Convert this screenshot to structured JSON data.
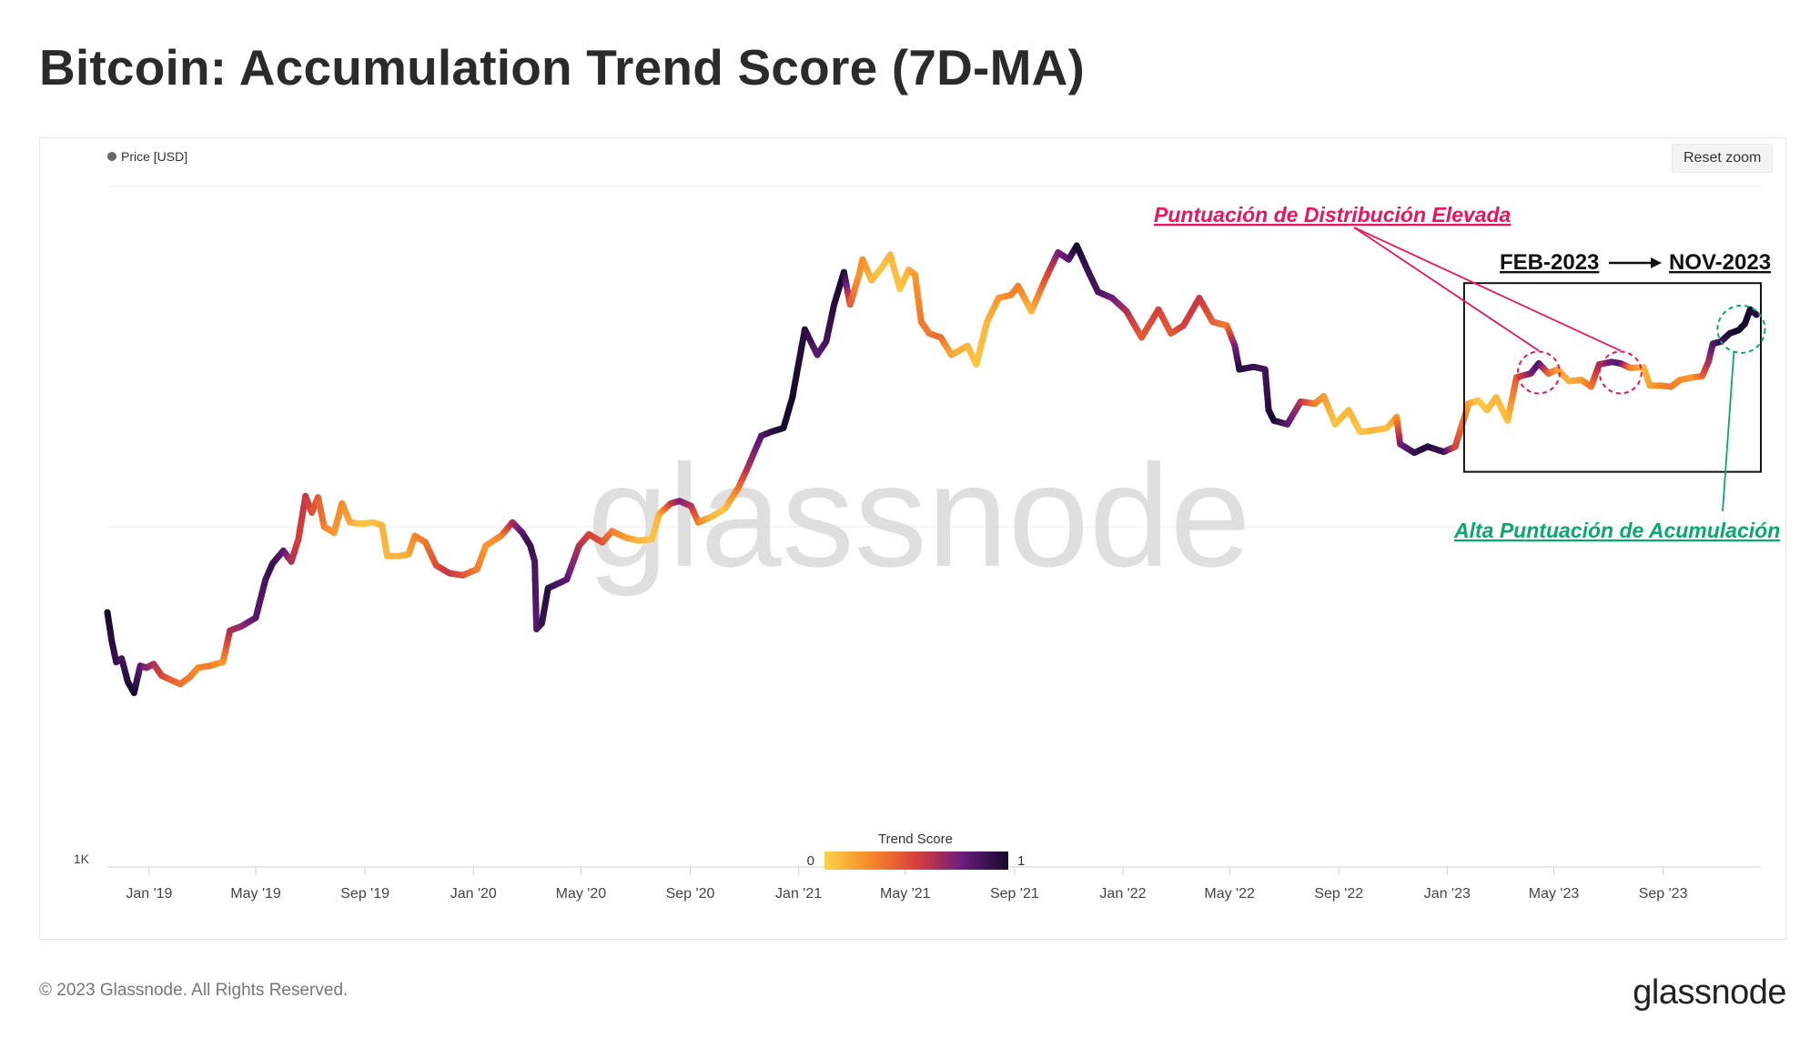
{
  "page": {
    "title": "Bitcoin: Accumulation Trend Score (7D-MA)",
    "reset_zoom_label": "Reset zoom",
    "footer_copyright": "© 2023 Glassnode. All Rights Reserved.",
    "footer_logo": "glassnode",
    "watermark": "glassnode"
  },
  "colors": {
    "score_0": "#fcd34b",
    "score_025": "#f7892a",
    "score_05": "#d7403b",
    "score_075": "#6b1c7d",
    "score_1": "#150a2e",
    "distribution_annotation": "#e8175d",
    "accumulation_annotation": "#0aa86e"
  },
  "chart_data": {
    "type": "line",
    "title": "Bitcoin: Accumulation Trend Score (7D-MA)",
    "legend": {
      "entries": [
        "Price [USD]"
      ],
      "placement": "top-left"
    },
    "y_axis": {
      "scale": "log",
      "tick_labels": [
        "1K"
      ],
      "ylim": [
        1000,
        100000
      ]
    },
    "x_axis": {
      "tick_labels": [
        "Jan '19",
        "May '19",
        "Sep '19",
        "Jan '20",
        "May '20",
        "Sep '20",
        "Jan '21",
        "May '21",
        "Sep '21",
        "Jan '22",
        "May '22",
        "Sep '22",
        "Jan '23",
        "May '23",
        "Sep '23"
      ],
      "tick_dates": [
        "2019-01-01",
        "2019-05-01",
        "2019-09-01",
        "2020-01-01",
        "2020-05-01",
        "2020-09-01",
        "2021-01-01",
        "2021-05-01",
        "2021-09-01",
        "2022-01-01",
        "2022-05-01",
        "2022-09-01",
        "2023-01-01",
        "2023-05-01",
        "2023-09-01"
      ],
      "xlim": [
        "2018-11-15",
        "2023-12-20"
      ]
    },
    "colorbar": {
      "title": "Trend Score",
      "min_label": "0",
      "max_label": "1"
    },
    "series": [
      {
        "name": "Price [USD]",
        "points": [
          [
            "2018-11-15",
            5600,
            1.0
          ],
          [
            "2018-11-20",
            4600,
            0.95
          ],
          [
            "2018-11-25",
            4000,
            0.9
          ],
          [
            "2018-12-01",
            4100,
            0.85
          ],
          [
            "2018-12-08",
            3500,
            0.95
          ],
          [
            "2018-12-15",
            3250,
            1.0
          ],
          [
            "2018-12-22",
            3900,
            0.8
          ],
          [
            "2018-12-29",
            3850,
            0.7
          ],
          [
            "2019-01-06",
            3950,
            0.6
          ],
          [
            "2019-01-15",
            3650,
            0.5
          ],
          [
            "2019-01-25",
            3550,
            0.4
          ],
          [
            "2019-02-05",
            3450,
            0.35
          ],
          [
            "2019-02-15",
            3600,
            0.3
          ],
          [
            "2019-02-25",
            3850,
            0.25
          ],
          [
            "2019-03-10",
            3900,
            0.3
          ],
          [
            "2019-03-25",
            4000,
            0.2
          ],
          [
            "2019-04-02",
            4950,
            0.6
          ],
          [
            "2019-04-15",
            5100,
            0.65
          ],
          [
            "2019-05-01",
            5400,
            0.8
          ],
          [
            "2019-05-12",
            7000,
            0.85
          ],
          [
            "2019-05-20",
            7800,
            0.9
          ],
          [
            "2019-06-01",
            8500,
            0.8
          ],
          [
            "2019-06-10",
            7900,
            0.6
          ],
          [
            "2019-06-18",
            9200,
            0.5
          ],
          [
            "2019-06-26",
            12300,
            0.55
          ],
          [
            "2019-07-03",
            11000,
            0.45
          ],
          [
            "2019-07-10",
            12200,
            0.4
          ],
          [
            "2019-07-17",
            10000,
            0.3
          ],
          [
            "2019-07-28",
            9600,
            0.2
          ],
          [
            "2019-08-06",
            11700,
            0.25
          ],
          [
            "2019-08-15",
            10300,
            0.15
          ],
          [
            "2019-08-28",
            10200,
            0.05
          ],
          [
            "2019-09-10",
            10300,
            0.05
          ],
          [
            "2019-09-20",
            10100,
            0.1
          ],
          [
            "2019-09-26",
            8200,
            0.1
          ],
          [
            "2019-10-10",
            8200,
            0.1
          ],
          [
            "2019-10-20",
            8300,
            0.15
          ],
          [
            "2019-10-27",
            9400,
            0.25
          ],
          [
            "2019-11-08",
            9000,
            0.3
          ],
          [
            "2019-11-20",
            7700,
            0.45
          ],
          [
            "2019-12-05",
            7300,
            0.55
          ],
          [
            "2019-12-20",
            7200,
            0.45
          ],
          [
            "2020-01-05",
            7500,
            0.3
          ],
          [
            "2020-01-15",
            8800,
            0.2
          ],
          [
            "2020-02-01",
            9400,
            0.25
          ],
          [
            "2020-02-14",
            10300,
            0.6
          ],
          [
            "2020-02-25",
            9600,
            0.8
          ],
          [
            "2020-03-05",
            8800,
            0.9
          ],
          [
            "2020-03-10",
            7900,
            0.85
          ],
          [
            "2020-03-12",
            5000,
            0.8
          ],
          [
            "2020-03-18",
            5200,
            0.9
          ],
          [
            "2020-03-25",
            6600,
            0.95
          ],
          [
            "2020-04-05",
            6800,
            0.85
          ],
          [
            "2020-04-15",
            7000,
            0.8
          ],
          [
            "2020-04-29",
            8800,
            0.6
          ],
          [
            "2020-05-10",
            9500,
            0.5
          ],
          [
            "2020-05-25",
            9000,
            0.45
          ],
          [
            "2020-06-05",
            9700,
            0.3
          ],
          [
            "2020-06-20",
            9300,
            0.2
          ],
          [
            "2020-07-05",
            9100,
            0.1
          ],
          [
            "2020-07-20",
            9200,
            0.05
          ],
          [
            "2020-07-28",
            10900,
            0.1
          ],
          [
            "2020-08-10",
            11700,
            0.5
          ],
          [
            "2020-08-20",
            11900,
            0.7
          ],
          [
            "2020-09-02",
            11500,
            0.6
          ],
          [
            "2020-09-10",
            10300,
            0.3
          ],
          [
            "2020-09-25",
            10700,
            0.1
          ],
          [
            "2020-10-10",
            11300,
            0.05
          ],
          [
            "2020-10-25",
            13000,
            0.3
          ],
          [
            "2020-11-05",
            15000,
            0.6
          ],
          [
            "2020-11-20",
            18500,
            0.8
          ],
          [
            "2020-12-01",
            19000,
            0.9
          ],
          [
            "2020-12-15",
            19500,
            1.0
          ],
          [
            "2020-12-25",
            24000,
            1.0
          ],
          [
            "2021-01-08",
            38000,
            0.95
          ],
          [
            "2021-01-22",
            32000,
            0.8
          ],
          [
            "2021-02-01",
            35000,
            0.85
          ],
          [
            "2021-02-10",
            45000,
            0.95
          ],
          [
            "2021-02-21",
            56000,
            1.0
          ],
          [
            "2021-02-28",
            45000,
            0.4
          ],
          [
            "2021-03-10",
            55000,
            0.2
          ],
          [
            "2021-03-14",
            61000,
            0.25
          ],
          [
            "2021-03-24",
            53000,
            0.1
          ],
          [
            "2021-04-05",
            58000,
            0.05
          ],
          [
            "2021-04-14",
            63000,
            0.1
          ],
          [
            "2021-04-25",
            50000,
            0.05
          ],
          [
            "2021-05-05",
            57000,
            0.1
          ],
          [
            "2021-05-12",
            55000,
            0.2
          ],
          [
            "2021-05-19",
            40000,
            0.3
          ],
          [
            "2021-05-28",
            37000,
            0.3
          ],
          [
            "2021-06-10",
            36000,
            0.35
          ],
          [
            "2021-06-22",
            32000,
            0.15
          ],
          [
            "2021-07-10",
            34000,
            0.1
          ],
          [
            "2021-07-20",
            30000,
            0.05
          ],
          [
            "2021-08-01",
            40000,
            0.1
          ],
          [
            "2021-08-14",
            47000,
            0.2
          ],
          [
            "2021-08-28",
            48000,
            0.25
          ],
          [
            "2021-09-05",
            51000,
            0.3
          ],
          [
            "2021-09-20",
            43000,
            0.1
          ],
          [
            "2021-10-05",
            53000,
            0.4
          ],
          [
            "2021-10-20",
            64000,
            0.7
          ],
          [
            "2021-11-01",
            61000,
            0.8
          ],
          [
            "2021-11-10",
            67000,
            1.0
          ],
          [
            "2021-11-22",
            57000,
            0.9
          ],
          [
            "2021-12-04",
            49000,
            0.85
          ],
          [
            "2021-12-20",
            47000,
            0.75
          ],
          [
            "2022-01-05",
            43000,
            0.6
          ],
          [
            "2022-01-22",
            36000,
            0.4
          ],
          [
            "2022-02-10",
            43500,
            0.5
          ],
          [
            "2022-02-24",
            37000,
            0.4
          ],
          [
            "2022-03-10",
            39000,
            0.5
          ],
          [
            "2022-03-28",
            47000,
            0.55
          ],
          [
            "2022-04-12",
            40000,
            0.4
          ],
          [
            "2022-04-28",
            39000,
            0.3
          ],
          [
            "2022-05-07",
            34000,
            0.7
          ],
          [
            "2022-05-12",
            29000,
            0.95
          ],
          [
            "2022-05-28",
            29500,
            0.9
          ],
          [
            "2022-06-10",
            29000,
            0.85
          ],
          [
            "2022-06-14",
            22000,
            0.95
          ],
          [
            "2022-06-20",
            20500,
            1.0
          ],
          [
            "2022-07-05",
            20000,
            0.8
          ],
          [
            "2022-07-20",
            23300,
            0.6
          ],
          [
            "2022-08-05",
            23000,
            0.3
          ],
          [
            "2022-08-15",
            24200,
            0.2
          ],
          [
            "2022-08-28",
            20000,
            0.05
          ],
          [
            "2022-09-12",
            22000,
            0.1
          ],
          [
            "2022-09-25",
            19000,
            0.05
          ],
          [
            "2022-10-10",
            19200,
            0.1
          ],
          [
            "2022-10-25",
            19500,
            0.05
          ],
          [
            "2022-11-05",
            21000,
            0.2
          ],
          [
            "2022-11-09",
            17500,
            0.7
          ],
          [
            "2022-11-25",
            16500,
            0.9
          ],
          [
            "2022-12-10",
            17200,
            0.95
          ],
          [
            "2022-12-28",
            16600,
            0.9
          ],
          [
            "2023-01-10",
            17200,
            0.5
          ],
          [
            "2023-01-25",
            23000,
            0.2
          ],
          [
            "2023-02-05",
            23500,
            0.05
          ],
          [
            "2023-02-15",
            22000,
            0.05
          ],
          [
            "2023-02-25",
            24000,
            0.1
          ],
          [
            "2023-03-10",
            20500,
            0.05
          ],
          [
            "2023-03-20",
            27500,
            0.4
          ],
          [
            "2023-04-05",
            28200,
            0.7
          ],
          [
            "2023-04-14",
            30200,
            0.85
          ],
          [
            "2023-04-25",
            28200,
            0.4
          ],
          [
            "2023-05-05",
            29000,
            0.2
          ],
          [
            "2023-05-18",
            26800,
            0.1
          ],
          [
            "2023-06-01",
            27000,
            0.2
          ],
          [
            "2023-06-12",
            25800,
            0.3
          ],
          [
            "2023-06-21",
            30000,
            0.6
          ],
          [
            "2023-07-05",
            30500,
            0.75
          ],
          [
            "2023-07-15",
            30200,
            0.8
          ],
          [
            "2023-07-26",
            29300,
            0.3
          ],
          [
            "2023-08-10",
            29400,
            0.1
          ],
          [
            "2023-08-17",
            26000,
            0.15
          ],
          [
            "2023-08-28",
            26000,
            0.25
          ],
          [
            "2023-09-10",
            25800,
            0.3
          ],
          [
            "2023-09-20",
            27000,
            0.25
          ],
          [
            "2023-10-05",
            27500,
            0.2
          ],
          [
            "2023-10-15",
            27700,
            0.35
          ],
          [
            "2023-10-22",
            30500,
            0.6
          ],
          [
            "2023-10-27",
            34500,
            0.8
          ],
          [
            "2023-11-05",
            35000,
            0.9
          ],
          [
            "2023-11-15",
            37000,
            0.95
          ],
          [
            "2023-11-25",
            37800,
            1.0
          ],
          [
            "2023-12-02",
            39500,
            1.0
          ],
          [
            "2023-12-08",
            43500,
            1.0
          ],
          [
            "2023-12-15",
            42000,
            0.95
          ]
        ]
      }
    ],
    "annotations": {
      "distribution_label": "Puntuación de Distribución Elevada",
      "accumulation_label": "Alta Puntuación de Acumulación",
      "range_from": "FEB-2023",
      "range_to": "NOV-2023",
      "range_box": {
        "from": "2023-01-20",
        "to": "2023-12-20",
        "ylow": 14500,
        "yhigh": 52000
      },
      "distribution_points": [
        [
          "2023-04-14",
          30200
        ],
        [
          "2023-07-15",
          30200
        ]
      ],
      "accumulation_point": [
        "2023-12-02",
        39500
      ]
    }
  }
}
